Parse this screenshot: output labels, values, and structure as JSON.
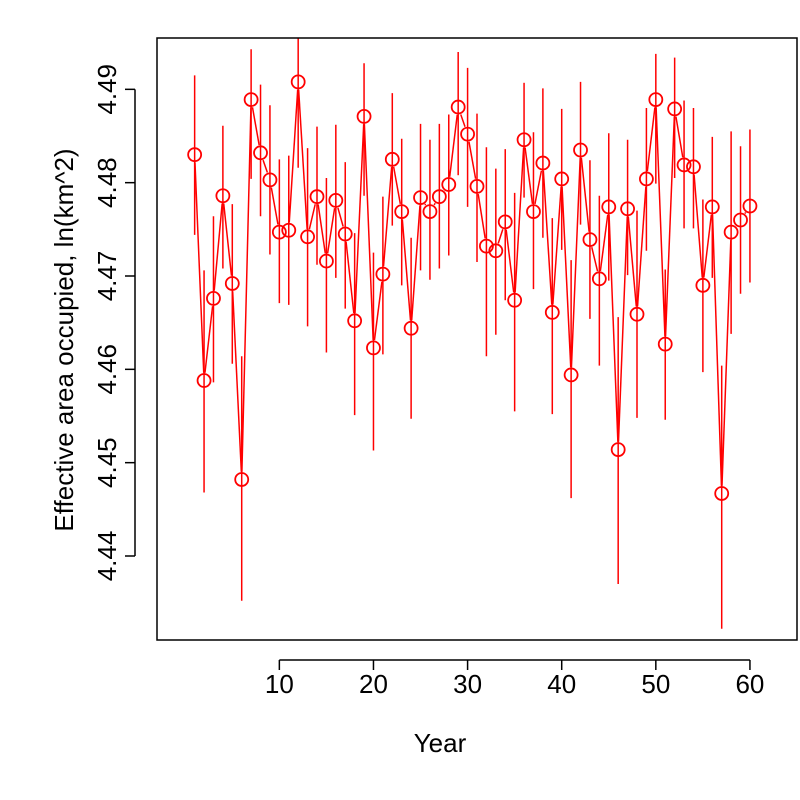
{
  "chart_data": {
    "type": "line",
    "title": "",
    "xlabel": "Year",
    "ylabel": "Effective area occupied, ln(km^2)",
    "xlim": [
      -3.0,
      65.0
    ],
    "ylim": [
      4.431,
      4.4955
    ],
    "x_ticks": [
      10,
      20,
      30,
      40,
      50,
      60
    ],
    "y_ticks": [
      4.44,
      4.45,
      4.46,
      4.47,
      4.48,
      4.49
    ],
    "x_tick_labels": [
      "10",
      "20",
      "30",
      "40",
      "50",
      "60"
    ],
    "y_tick_labels": [
      "4.44",
      "4.45",
      "4.46",
      "4.47",
      "4.48",
      "4.49"
    ],
    "color": "#ff0000",
    "legend": "none",
    "grid": false,
    "series": [
      {
        "x": [
          1,
          2,
          3,
          4,
          5,
          6,
          7,
          8,
          9,
          10,
          11,
          12,
          13,
          14,
          15,
          16,
          17,
          18,
          19,
          20,
          21,
          22,
          23,
          24,
          25,
          26,
          27,
          28,
          29,
          30,
          31,
          32,
          33,
          34,
          35,
          36,
          37,
          38,
          39,
          40,
          41,
          42,
          43,
          44,
          45,
          46,
          47,
          48,
          49,
          50,
          51,
          52,
          53,
          54,
          55,
          56,
          57,
          58,
          59,
          60
        ],
        "y": [
          4.483,
          4.4588,
          4.4676,
          4.4786,
          4.4692,
          4.4482,
          4.4889,
          4.4832,
          4.4803,
          4.4747,
          4.4749,
          4.4908,
          4.4742,
          4.4785,
          4.4716,
          4.4781,
          4.4745,
          4.4652,
          4.4871,
          4.4623,
          4.4702,
          4.4825,
          4.4769,
          4.4644,
          4.4784,
          4.4769,
          4.4785,
          4.4798,
          4.4881,
          4.4852,
          4.4796,
          4.4732,
          4.4727,
          4.4758,
          4.4674,
          4.4846,
          4.4769,
          4.4821,
          4.4661,
          4.4804,
          4.4594,
          4.4835,
          4.4739,
          4.4697,
          4.4774,
          4.4514,
          4.4772,
          4.4659,
          4.4804,
          4.4889,
          4.4627,
          4.4879,
          4.4819,
          4.4817,
          4.469,
          4.4774,
          4.4467,
          4.4747,
          4.476,
          4.4775
        ],
        "lower": [
          4.4744,
          4.4468,
          4.4586,
          4.4708,
          4.4606,
          4.4352,
          4.4804,
          4.4764,
          4.4723,
          4.4671,
          4.4669,
          4.4816,
          4.4646,
          4.4712,
          4.4618,
          4.4698,
          4.4665,
          4.4551,
          4.4786,
          4.4513,
          4.4616,
          4.4754,
          4.469,
          4.4547,
          4.4706,
          4.4696,
          4.4708,
          4.4722,
          4.4808,
          4.4774,
          4.4715,
          4.4614,
          4.4637,
          4.4674,
          4.4555,
          4.4784,
          4.4686,
          4.4741,
          4.4552,
          4.4728,
          4.4462,
          4.4755,
          4.4654,
          4.4604,
          4.4695,
          4.437,
          4.4701,
          4.4548,
          4.4727,
          4.4799,
          4.4546,
          4.4805,
          4.4751,
          4.4751,
          4.4597,
          4.4698,
          4.4322,
          4.4638,
          4.4681,
          4.4693
        ],
        "upper": [
          4.4915,
          4.4706,
          4.4764,
          4.4861,
          4.4777,
          4.4614,
          4.4943,
          4.4905,
          4.4883,
          4.4825,
          4.4829,
          4.4955,
          4.4837,
          4.486,
          4.4805,
          4.4862,
          4.4822,
          4.4746,
          4.4928,
          4.4725,
          4.4785,
          4.4896,
          4.4847,
          4.4741,
          4.4863,
          4.4846,
          4.4863,
          4.4873,
          4.494,
          4.4923,
          4.4874,
          4.4838,
          4.4815,
          4.4836,
          4.4789,
          4.4907,
          4.4854,
          4.4901,
          4.4762,
          4.4879,
          4.4717,
          4.4908,
          4.4824,
          4.4786,
          4.4853,
          4.4656,
          4.4846,
          4.477,
          4.488,
          4.4938,
          4.4707,
          4.4934,
          4.4888,
          4.488,
          4.4782,
          4.4849,
          4.4604,
          4.4855,
          4.4839,
          4.4857
        ]
      }
    ]
  }
}
